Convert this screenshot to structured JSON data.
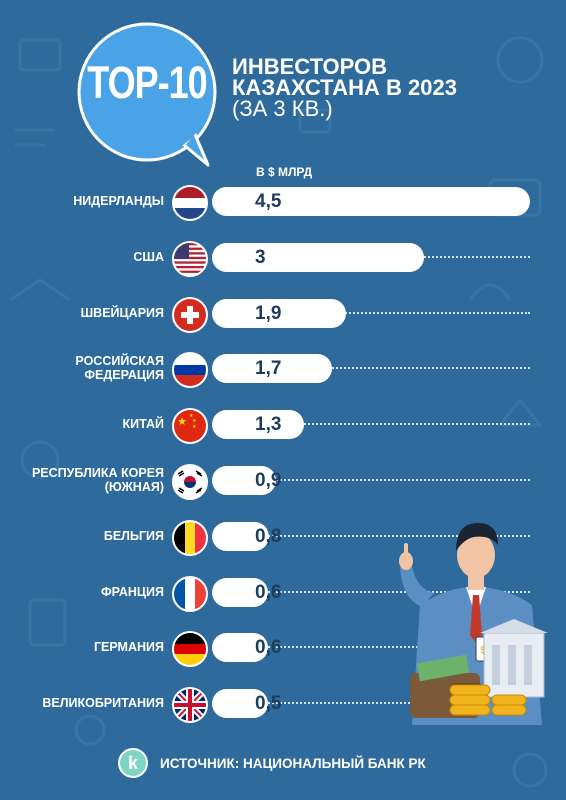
{
  "badge": {
    "text": "TOP-10"
  },
  "header": {
    "title_line1": "ИНВЕСТОРОВ",
    "title_line2": "КАЗАХСТАНА В 2023",
    "title_line3": "(ЗА 3 КВ.)"
  },
  "chart_data": {
    "type": "bar",
    "orientation": "horizontal",
    "unit_label": "В $ МЛРД",
    "categories": [
      "НИДЕРЛАНДЫ",
      "США",
      "ШВЕЙЦАРИЯ",
      "РОССИЙСКАЯ ФЕДЕРАЦИЯ",
      "КИТАЙ",
      "РЕСПУБЛИКА КОРЕЯ (ЮЖНАЯ)",
      "БЕЛЬГИЯ",
      "ФРАНЦИЯ",
      "ГЕРМАНИЯ",
      "ВЕЛИКОБРИТАНИЯ"
    ],
    "values": [
      4.5,
      3,
      1.9,
      1.7,
      1.3,
      0.9,
      0.8,
      0.6,
      0.6,
      0.5
    ],
    "value_labels": [
      "4,5",
      "3",
      "1,9",
      "1,7",
      "1,3",
      "0,9",
      "0,8",
      "0,6",
      "0,6",
      "0,5"
    ],
    "flags": [
      "netherlands-flag",
      "usa-flag",
      "switzerland-flag",
      "russia-flag",
      "china-flag",
      "south-korea-flag",
      "belgium-flag",
      "france-flag",
      "germany-flag",
      "uk-flag"
    ],
    "xlim": [
      0,
      4.5
    ]
  },
  "rows": [
    {
      "label": "НИДЕРЛАНДЫ",
      "value": "4,5"
    },
    {
      "label": "США",
      "value": "3"
    },
    {
      "label": "ШВЕЙЦАРИЯ",
      "value": "1,9"
    },
    {
      "label": "РОССИЙСКАЯ ФЕДЕРАЦИЯ",
      "value": "1,7"
    },
    {
      "label": "КИТАЙ",
      "value": "1,3"
    },
    {
      "label": "РЕСПУБЛИКА КОРЕЯ (ЮЖНАЯ)",
      "value": "0,9"
    },
    {
      "label": "БЕЛЬГИЯ",
      "value": "0,8"
    },
    {
      "label": "ФРАНЦИЯ",
      "value": "0,6"
    },
    {
      "label": "ГЕРМАНИЯ",
      "value": "0,6"
    },
    {
      "label": "ВЕЛИКОБРИТАНИЯ",
      "value": "0,5"
    }
  ],
  "source": {
    "logo_letter": "k",
    "text": "ИСТОЧНИК: НАЦИОНАЛЬНЫЙ БАНК РК"
  },
  "colors": {
    "background": "#2e6a9b",
    "bar": "#ffffff",
    "value_text": "#1d3d5c",
    "badge": "#4aa3e6"
  }
}
